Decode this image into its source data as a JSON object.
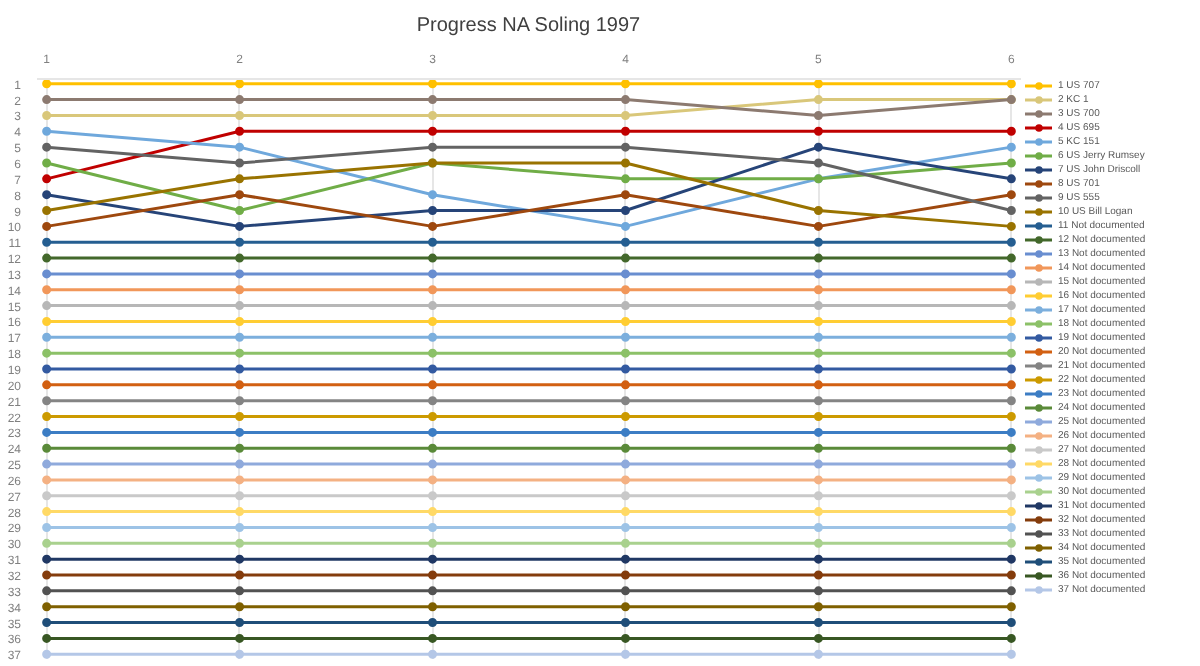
{
  "chart_data": {
    "type": "line",
    "title": "Progress NA Soling 1997",
    "x": [
      1,
      2,
      3,
      4,
      5,
      6
    ],
    "xlim": [
      0.95,
      6.05
    ],
    "xticks": [
      1,
      2,
      3,
      4,
      5,
      6
    ],
    "ylim": [
      37.3,
      0.7
    ],
    "yticks": [
      1,
      2,
      3,
      4,
      5,
      6,
      7,
      8,
      9,
      10,
      11,
      12,
      13,
      14,
      15,
      16,
      17,
      18,
      19,
      20,
      21,
      22,
      23,
      24,
      25,
      26,
      27,
      28,
      29,
      30,
      31,
      32,
      33,
      34,
      35,
      36,
      37
    ],
    "grid": "x",
    "legend": "right",
    "marker": "circle",
    "line_style": "solid",
    "series": [
      {
        "name": "1 US 707",
        "color": "#ffc000",
        "values": [
          1,
          1,
          1,
          1,
          1,
          1
        ]
      },
      {
        "name": "2 KC 1",
        "color": "#d9c77a",
        "values": [
          3,
          3,
          3,
          3,
          2,
          2
        ]
      },
      {
        "name": "3 US 700",
        "color": "#8c7a70",
        "values": [
          2,
          2,
          2,
          2,
          3,
          2
        ]
      },
      {
        "name": "4 US 695",
        "color": "#c00000",
        "values": [
          7,
          4,
          4,
          4,
          4,
          4
        ]
      },
      {
        "name": "5 KC 151",
        "color": "#6fa8dc",
        "values": [
          4,
          5,
          8,
          10,
          7,
          5
        ]
      },
      {
        "name": "6 US Jerry Rumsey",
        "color": "#70ad47",
        "values": [
          6,
          9,
          6,
          7,
          7,
          6
        ]
      },
      {
        "name": "7 US John Driscoll",
        "color": "#264478",
        "values": [
          8,
          10,
          9,
          9,
          5,
          7
        ]
      },
      {
        "name": "8 US 701",
        "color": "#9e480e",
        "values": [
          10,
          8,
          10,
          8,
          10,
          8
        ]
      },
      {
        "name": "9 US 555",
        "color": "#636363",
        "values": [
          5,
          6,
          5,
          5,
          6,
          9
        ]
      },
      {
        "name": "10 US Bill Logan",
        "color": "#997300",
        "values": [
          9,
          7,
          6,
          6,
          9,
          10
        ]
      },
      {
        "name": "11 Not documented",
        "color": "#255e91",
        "values": [
          11,
          11,
          11,
          11,
          11,
          11
        ]
      },
      {
        "name": "12 Not documented",
        "color": "#43682b",
        "values": [
          12,
          12,
          12,
          12,
          12,
          12
        ]
      },
      {
        "name": "13 Not documented",
        "color": "#698ed0",
        "values": [
          13,
          13,
          13,
          13,
          13,
          13
        ]
      },
      {
        "name": "14 Not documented",
        "color": "#f1975a",
        "values": [
          14,
          14,
          14,
          14,
          14,
          14
        ]
      },
      {
        "name": "15 Not documented",
        "color": "#b7b7b7",
        "values": [
          15,
          15,
          15,
          15,
          15,
          15
        ]
      },
      {
        "name": "16 Not documented",
        "color": "#ffcd33",
        "values": [
          16,
          16,
          16,
          16,
          16,
          16
        ]
      },
      {
        "name": "17 Not documented",
        "color": "#7cafdd",
        "values": [
          17,
          17,
          17,
          17,
          17,
          17
        ]
      },
      {
        "name": "18 Not documented",
        "color": "#8cc168",
        "values": [
          18,
          18,
          18,
          18,
          18,
          18
        ]
      },
      {
        "name": "19 Not documented",
        "color": "#335aa1",
        "values": [
          19,
          19,
          19,
          19,
          19,
          19
        ]
      },
      {
        "name": "20 Not documented",
        "color": "#d26012",
        "values": [
          20,
          20,
          20,
          20,
          20,
          20
        ]
      },
      {
        "name": "21 Not documented",
        "color": "#848484",
        "values": [
          21,
          21,
          21,
          21,
          21,
          21
        ]
      },
      {
        "name": "22 Not documented",
        "color": "#cc9a00",
        "values": [
          22,
          22,
          22,
          22,
          22,
          22
        ]
      },
      {
        "name": "23 Not documented",
        "color": "#3c7dc4",
        "values": [
          23,
          23,
          23,
          23,
          23,
          23
        ]
      },
      {
        "name": "24 Not documented",
        "color": "#5a8a39",
        "values": [
          24,
          24,
          24,
          24,
          24,
          24
        ]
      },
      {
        "name": "25 Not documented",
        "color": "#8faadc",
        "values": [
          25,
          25,
          25,
          25,
          25,
          25
        ]
      },
      {
        "name": "26 Not documented",
        "color": "#f4b183",
        "values": [
          26,
          26,
          26,
          26,
          26,
          26
        ]
      },
      {
        "name": "27 Not documented",
        "color": "#c9c9c9",
        "values": [
          27,
          27,
          27,
          27,
          27,
          27
        ]
      },
      {
        "name": "28 Not documented",
        "color": "#ffd966",
        "values": [
          28,
          28,
          28,
          28,
          28,
          28
        ]
      },
      {
        "name": "29 Not documented",
        "color": "#9dc3e6",
        "values": [
          29,
          29,
          29,
          29,
          29,
          29
        ]
      },
      {
        "name": "30 Not documented",
        "color": "#a9d18e",
        "values": [
          30,
          30,
          30,
          30,
          30,
          30
        ]
      },
      {
        "name": "31 Not documented",
        "color": "#203864",
        "values": [
          31,
          31,
          31,
          31,
          31,
          31
        ]
      },
      {
        "name": "32 Not documented",
        "color": "#843c0c",
        "values": [
          32,
          32,
          32,
          32,
          32,
          32
        ]
      },
      {
        "name": "33 Not documented",
        "color": "#525252",
        "values": [
          33,
          33,
          33,
          33,
          33,
          33
        ]
      },
      {
        "name": "34 Not documented",
        "color": "#7f6000",
        "values": [
          34,
          34,
          34,
          34,
          34,
          34
        ]
      },
      {
        "name": "35 Not documented",
        "color": "#1f4e79",
        "values": [
          35,
          35,
          35,
          35,
          35,
          35
        ]
      },
      {
        "name": "36 Not documented",
        "color": "#385723",
        "values": [
          36,
          36,
          36,
          36,
          36,
          36
        ]
      },
      {
        "name": "37 Not documented",
        "color": "#b4c7e7",
        "values": [
          37,
          37,
          37,
          37,
          37,
          37
        ]
      }
    ]
  }
}
